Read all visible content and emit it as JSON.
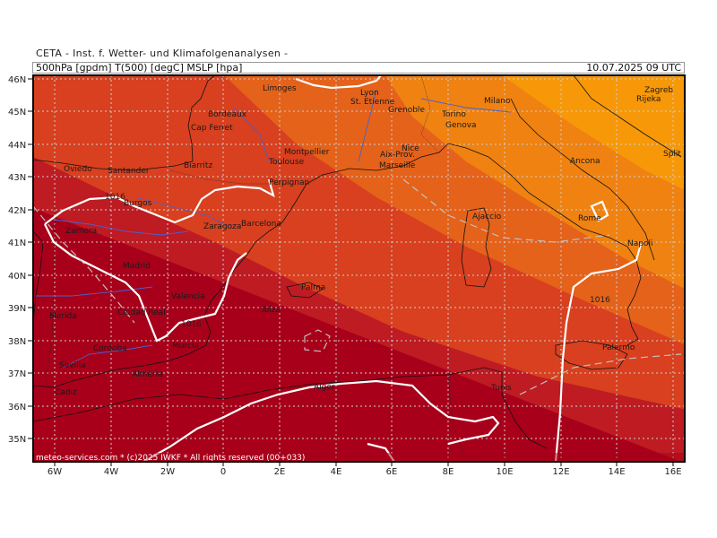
{
  "header": {
    "institute": "CETA - Inst. f. Wetter- und Klimafolgenanalysen -",
    "variables": "500hPa [gpdm] T(500) [degC] MSLP [hpa]",
    "valid_time": "10.07.2025  09 UTC"
  },
  "footer": {
    "copyright": "meteo-services.com * (c)2025 IWKF * All rights reserved (00+033)"
  },
  "map": {
    "lon_labels": [
      "6W",
      "4W",
      "2W",
      "0",
      "2E",
      "4E",
      "6E",
      "8E",
      "10E",
      "12E",
      "14E",
      "16E"
    ],
    "lat_labels": [
      "46N",
      "45N",
      "44N",
      "43N",
      "42N",
      "41N",
      "40N",
      "39N",
      "38N",
      "37N",
      "36N",
      "35N"
    ],
    "cities": [
      {
        "name": "Limoges"
      },
      {
        "name": "Lyon"
      },
      {
        "name": "St. Etienne"
      },
      {
        "name": "Grenoble"
      },
      {
        "name": "Bordeaux"
      },
      {
        "name": "Cap Ferret"
      },
      {
        "name": "Montpellier"
      },
      {
        "name": "Toulouse"
      },
      {
        "name": "Nice"
      },
      {
        "name": "Aix-Prov."
      },
      {
        "name": "Marseille"
      },
      {
        "name": "Milano"
      },
      {
        "name": "Torino"
      },
      {
        "name": "Genova"
      },
      {
        "name": "Zagreb"
      },
      {
        "name": "Rijeka"
      },
      {
        "name": "Oviedo"
      },
      {
        "name": "Santander"
      },
      {
        "name": "Biarritz"
      },
      {
        "name": "Burgos"
      },
      {
        "name": "Perpignan"
      },
      {
        "name": "Zaragoza"
      },
      {
        "name": "Barcelona"
      },
      {
        "name": "Ajaccio"
      },
      {
        "name": "Ancona"
      },
      {
        "name": "Split"
      },
      {
        "name": "Rome"
      },
      {
        "name": "Napoli"
      },
      {
        "name": "Zamora"
      },
      {
        "name": "Madrid"
      },
      {
        "name": "Palma"
      },
      {
        "name": "Valencia"
      },
      {
        "name": "Merida"
      },
      {
        "name": "Ciudad Real"
      },
      {
        "name": "Ibiza"
      },
      {
        "name": "Murcia"
      },
      {
        "name": "Cordoba"
      },
      {
        "name": "Sevilla"
      },
      {
        "name": "Almeria"
      },
      {
        "name": "Cadiz"
      },
      {
        "name": "Alger"
      },
      {
        "name": "Tunis"
      },
      {
        "name": "Palermo"
      }
    ],
    "isobar_labels": [
      "1016",
      "1016",
      "1016"
    ],
    "colors": {
      "band_darkest": "#a8001a",
      "band_dark": "#be1b23",
      "band_mid": "#d8401f",
      "band_orange": "#e5621a",
      "band_lightorange": "#ef8211",
      "band_light": "#f79808",
      "isobar": "#ffffff",
      "coast": "#111111",
      "river": "#4a5fd0",
      "grid": "#cfcfcf"
    }
  }
}
